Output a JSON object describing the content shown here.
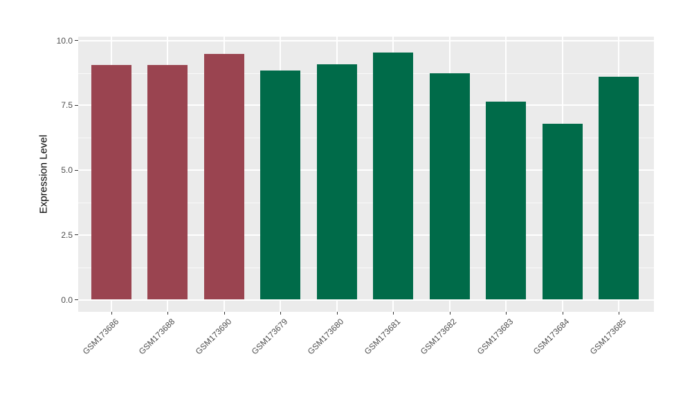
{
  "figure": {
    "ylabel": "Expression Level"
  },
  "chart_data": {
    "type": "bar",
    "title": "",
    "xlabel": "",
    "ylabel": "Expression Level",
    "categories": [
      "GSM173686",
      "GSM173688",
      "GSM173690",
      "GSM173679",
      "GSM173680",
      "GSM173681",
      "GSM173682",
      "GSM173683",
      "GSM173684",
      "GSM173685"
    ],
    "values": [
      9.05,
      9.05,
      9.5,
      8.85,
      9.1,
      9.55,
      8.75,
      7.65,
      6.8,
      8.6
    ],
    "bar_colors": [
      "#9A4450",
      "#9A4450",
      "#9A4450",
      "#006B49",
      "#006B49",
      "#006B49",
      "#006B49",
      "#006B49",
      "#006B49",
      "#006B49"
    ],
    "group_colors": {
      "maroon": "#9A4450",
      "green": "#006B49"
    },
    "ylim": [
      0,
      10
    ],
    "yticks": [
      0.0,
      2.5,
      5.0,
      7.5,
      10.0
    ],
    "ytick_labels": [
      "0.0",
      "2.5",
      "5.0",
      "7.5",
      "10.0"
    ],
    "yticks_minor": [
      1.25,
      3.75,
      6.25,
      8.75
    ],
    "grid": "on",
    "legend": "none",
    "panel_bg": "#EBEBEB",
    "grid_color": "#FFFFFF"
  }
}
